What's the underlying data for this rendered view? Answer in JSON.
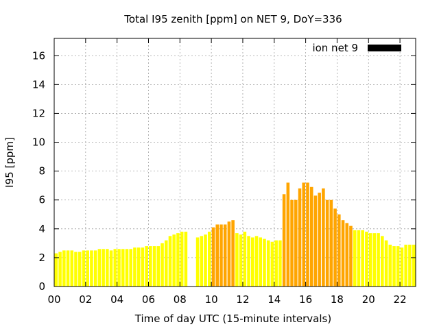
{
  "chart_data": {
    "type": "bar",
    "title": "Total I95 zenith [ppm] on NET 9, DoY=336",
    "xlabel": "Time of day UTC (15-minute intervals)",
    "ylabel": "I95 [ppm]",
    "xlim": [
      0,
      23
    ],
    "ylim": [
      0,
      17.2
    ],
    "xticks": [
      0,
      2,
      4,
      6,
      8,
      10,
      12,
      14,
      16,
      18,
      20,
      22
    ],
    "xtick_labels": [
      "00",
      "02",
      "04",
      "06",
      "08",
      "10",
      "12",
      "14",
      "16",
      "18",
      "20",
      "22"
    ],
    "yticks": [
      0,
      2,
      4,
      6,
      8,
      10,
      12,
      14,
      16
    ],
    "ytick_labels": [
      "0",
      "2",
      "4",
      "6",
      "8",
      "10",
      "12",
      "14",
      "16"
    ],
    "grid": true,
    "legend": {
      "label": "ion net 9",
      "color": "#000000",
      "placement": "top-right"
    },
    "interval_hours": 0.25,
    "threshold": 4.0,
    "colors": {
      "low": "#ffff00",
      "mid": "#ffa500"
    },
    "values": [
      2.3,
      2.4,
      2.5,
      2.5,
      2.5,
      2.4,
      2.4,
      2.5,
      2.5,
      2.5,
      2.5,
      2.6,
      2.6,
      2.6,
      2.5,
      2.6,
      2.6,
      2.6,
      2.6,
      2.6,
      2.7,
      2.7,
      2.7,
      2.8,
      2.8,
      2.8,
      2.8,
      3.0,
      3.2,
      3.5,
      3.6,
      3.7,
      3.8,
      3.8,
      0,
      0,
      3.4,
      3.5,
      3.6,
      3.8,
      4.1,
      4.3,
      4.3,
      4.3,
      4.5,
      4.6,
      3.7,
      3.6,
      3.8,
      3.5,
      3.4,
      3.5,
      3.4,
      3.3,
      3.2,
      3.1,
      3.2,
      3.2,
      6.4,
      7.2,
      6.0,
      6.0,
      6.8,
      7.2,
      7.2,
      6.9,
      6.3,
      6.5,
      6.8,
      6.0,
      6.0,
      5.4,
      5.0,
      4.6,
      4.4,
      4.2,
      3.9,
      3.9,
      3.9,
      3.8,
      3.7,
      3.7,
      3.7,
      3.5,
      3.2,
      2.9,
      2.8,
      2.8,
      2.7,
      2.9,
      2.9,
      2.9
    ]
  }
}
